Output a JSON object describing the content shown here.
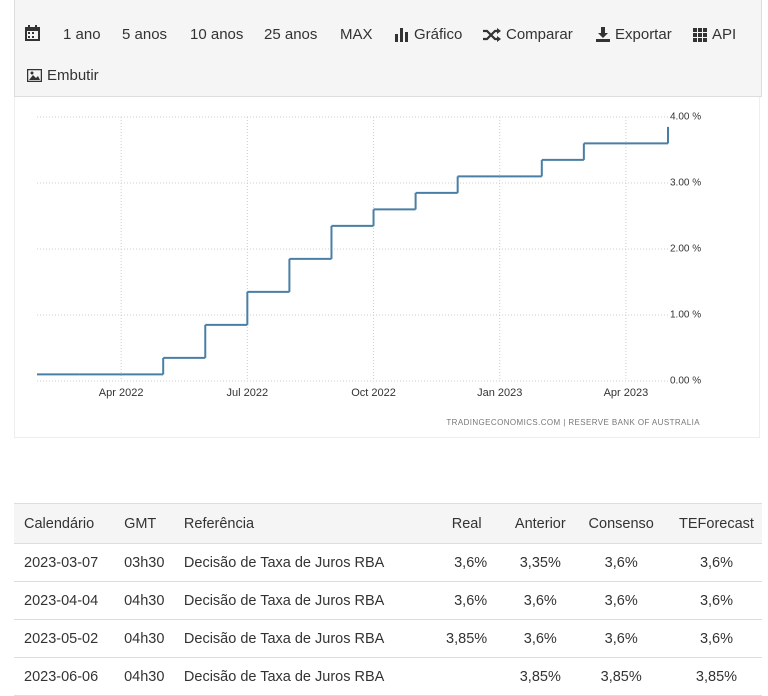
{
  "toolbar": [
    "1 ano",
    "5 anos",
    "10 anos",
    "25 anos",
    "MAX",
    "Gráfico",
    "Comparar",
    "Exportar",
    "API",
    "Embutir"
  ],
  "chart_data": {
    "type": "step-line",
    "x": [
      "2022-02",
      "2022-03",
      "2022-04",
      "2022-05",
      "2022-06",
      "2022-07",
      "2022-08",
      "2022-09",
      "2022-10",
      "2022-11",
      "2022-12",
      "2023-01",
      "2023-02",
      "2023-03",
      "2023-04",
      "2023-05"
    ],
    "values": [
      0.1,
      0.1,
      0.1,
      0.35,
      0.85,
      1.35,
      1.85,
      2.35,
      2.6,
      2.85,
      3.1,
      3.1,
      3.35,
      3.6,
      3.6,
      3.85
    ],
    "color": "#4a7fa5",
    "xlim": [
      "2022-02",
      "2023-05"
    ],
    "xticks": [
      {
        "value": "2022-04",
        "label": "Apr 2022"
      },
      {
        "value": "2022-07",
        "label": "Jul 2022"
      },
      {
        "value": "2022-10",
        "label": "Oct 2022"
      },
      {
        "value": "2023-01",
        "label": "Jan 2023"
      },
      {
        "value": "2023-04",
        "label": "Apr 2023"
      }
    ],
    "ylim": [
      0,
      4
    ],
    "yticks": [
      {
        "value": 0,
        "label": "0.00 %"
      },
      {
        "value": 1,
        "label": "1.00 %"
      },
      {
        "value": 2,
        "label": "2.00 %"
      },
      {
        "value": 3,
        "label": "3.00 %"
      },
      {
        "value": 4,
        "label": "4.00 %"
      }
    ],
    "grid": true,
    "source": "TRADINGECONOMICS.COM | RESERVE BANK OF AUSTRALIA"
  },
  "table": {
    "header": [
      "Calendário",
      "GMT",
      "Referência",
      "Real",
      "Anterior",
      "Consenso",
      "TEForecast"
    ],
    "rows": [
      [
        "2023-03-07",
        "03h30",
        "Decisão de Taxa de Juros RBA",
        "3,6%",
        "3,35%",
        "3,6%",
        "3,6%"
      ],
      [
        "2023-04-04",
        "04h30",
        "Decisão de Taxa de Juros RBA",
        "3,6%",
        "3,6%",
        "3,6%",
        "3,6%"
      ],
      [
        "2023-05-02",
        "04h30",
        "Decisão de Taxa de Juros RBA",
        "3,85%",
        "3,6%",
        "3,6%",
        "3,6%"
      ],
      [
        "2023-06-06",
        "04h30",
        "Decisão de Taxa de Juros RBA",
        null,
        "3,85%",
        "3,85%",
        "3,85%"
      ]
    ]
  }
}
